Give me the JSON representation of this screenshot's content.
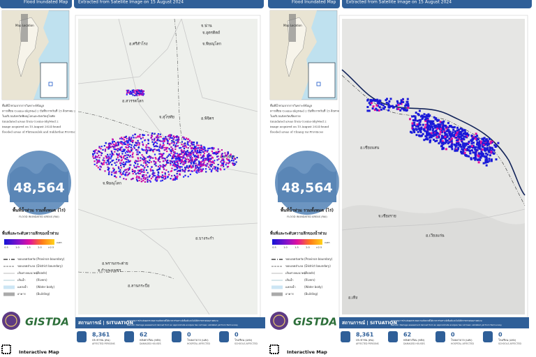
{
  "panels": [
    {
      "header": {
        "title": "Flood Inundated Map",
        "subtitle": "Extracted from Satellite Image on 15 August 2024"
      },
      "inset_label": "Map Location",
      "description": [
        "พื้นที่น้ำท่วมจากการวิเคราะห์ข้อมูล",
        "ดาวเทียม Cosmo-SkyMed 2 บันทึกภาพวันที่ 15 สิงหาคม 2567",
        "ในบริเวณจังหวัดพิษณุโลกและจังหวัดสุโขทัย",
        "Inundated areas from Cosmo-SkyMed 2",
        "image acquired on 15 August 2024 found",
        "flooded areas of Phitsanulok and Sukhothai Provinces"
      ],
      "total": {
        "value": "48,564",
        "label_th": "พื้นที่น้ำท่วม รวมทั้งหมด (ไร่)",
        "label_en": "FLOOD INUNDATED AREAS (RAI)"
      },
      "depth": {
        "title": "พื้นที่และระดับความลึกของน้ำท่วม",
        "ticks": [
          "0.5",
          "1.0",
          "1.5",
          "2.0",
          ">2.5"
        ],
        "unit": "เมตร"
      },
      "legend": [
        {
          "th": "ขอบเขตจังหวัด",
          "en": "(Province boundary)"
        },
        {
          "th": "ขอบเขตอำเภอ",
          "en": "(District boundary)"
        },
        {
          "th": "เส้นทางคมนาคม",
          "en": "(Roads)"
        },
        {
          "th": "เส้นน้ำ",
          "en": "(Rivers)"
        },
        {
          "th": "แหล่งน้ำ",
          "en": "(Water body)"
        },
        {
          "th": "อาคาร",
          "en": "(Building)"
        }
      ],
      "map_labels": [
        "จ.น่าน",
        "จ.อุตรดิตถ์",
        "อ.ศรีสำโรง",
        "จ.พิษณุโลก",
        "อ.สวรรคโลก",
        "จ.สุโขทัย",
        "อ.พิจิตร",
        "อ.ศรีนคร",
        "จ.พิษณุโลก",
        "อ.บางระกำ",
        "อ.พรานกระต่าย",
        "จ.กำแพงเพชร",
        "อ.ลานกระบือ"
      ],
      "situation": {
        "title": "สถานการณ์ | SITUATION",
        "note_th": "หมายเหตุ การประเมินผลกระทบความเสียหายนี้ได้จากการวิเคราะห์เบื้องต้น ยังไม่ได้มีการตรวจสอบภาคสนาม",
        "note_en": "Remark: Damage assessment derived from an approximate analysis has not been validated yet from field survey",
        "stats": [
          {
            "value": "8,361",
            "th": "ประชาชน (คน)",
            "en": "AFFECTED PERSONS"
          },
          {
            "value": "62",
            "th": "หลังคาเรือน (หลัง)",
            "en": "DAMAGED HOUSES"
          },
          {
            "value": "0",
            "th": "โรงพยาบาล (แห่ง)",
            "en": "HOSPITAL AFFECTED"
          },
          {
            "value": "0",
            "th": "โรงเรียน (แห่ง)",
            "en": "SCHOOLS AFFECTED"
          }
        ]
      },
      "footer": {
        "logo": "GISTDA",
        "interactive": "Interactive Map"
      }
    },
    {
      "header": {
        "title": "Flood Inundated Map",
        "subtitle": "Extracted from Satellite Image on 15 August 2024"
      },
      "inset_label": "Map Location",
      "description": [
        "พื้นที่น้ำท่วมจากการวิเคราะห์ข้อมูล",
        "ดาวเทียม Cosmo-SkyMed 2 บันทึกภาพวันที่ 15 สิงหาคม 2567",
        "ในบริเวณจังหวัดเชียงราย",
        "Inundated areas from Cosmo-SkyMed 2",
        "image acquired on 15 August 2024 found",
        "flooded areas of Chiang rai Provinces"
      ],
      "total": {
        "value": "48,564",
        "label_th": "พื้นที่น้ำท่วม รวมทั้งหมด (ไร่)",
        "label_en": "FLOOD INUNDATED AREAS (RAI)"
      },
      "depth": {
        "title": "พื้นที่และระดับความลึกของน้ำท่วม",
        "ticks": [
          "0.5",
          "1.0",
          "1.5",
          "2.0",
          ">2.5"
        ],
        "unit": "เมตร"
      },
      "legend": [
        {
          "th": "ขอบเขตจังหวัด",
          "en": "(Province boundary)"
        },
        {
          "th": "ขอบเขตอำเภอ",
          "en": "(District boundary)"
        },
        {
          "th": "เส้นทางคมนาคม",
          "en": "(Roads)"
        },
        {
          "th": "เส้นน้ำ",
          "en": "(Rivers)"
        },
        {
          "th": "แหล่งน้ำ",
          "en": "(Water body)"
        },
        {
          "th": "อาคาร",
          "en": "(Building)"
        }
      ],
      "map_labels": [
        "อ.เชียงแสน",
        "จ.เชียงราย",
        "อ.เวียงแก่น",
        "อ.เทิง"
      ],
      "situation": {
        "title": "สถานการณ์ | SITUATION",
        "note_th": "หมายเหตุ การประเมินผลกระทบความเสียหายนี้ได้จากการวิเคราะห์เบื้องต้น ยังไม่ได้มีการตรวจสอบภาคสนาม",
        "note_en": "Remark: Damage assessment derived from an approximate analysis has not been validated yet from field survey",
        "stats": [
          {
            "value": "8,361",
            "th": "ประชาชน (คน)",
            "en": "AFFECTED PERSONS"
          },
          {
            "value": "62",
            "th": "หลังคาเรือน (หลัง)",
            "en": "DAMAGED HOUSES"
          },
          {
            "value": "0",
            "th": "โรงพยาบาล (แห่ง)",
            "en": "HOSPITAL AFFECTED"
          },
          {
            "value": "0",
            "th": "โรงเรียน (แห่ง)",
            "en": "SCHOOLS AFFECTED"
          }
        ]
      },
      "footer": {
        "logo": "GISTDA",
        "interactive": "Interactive Map"
      }
    }
  ]
}
